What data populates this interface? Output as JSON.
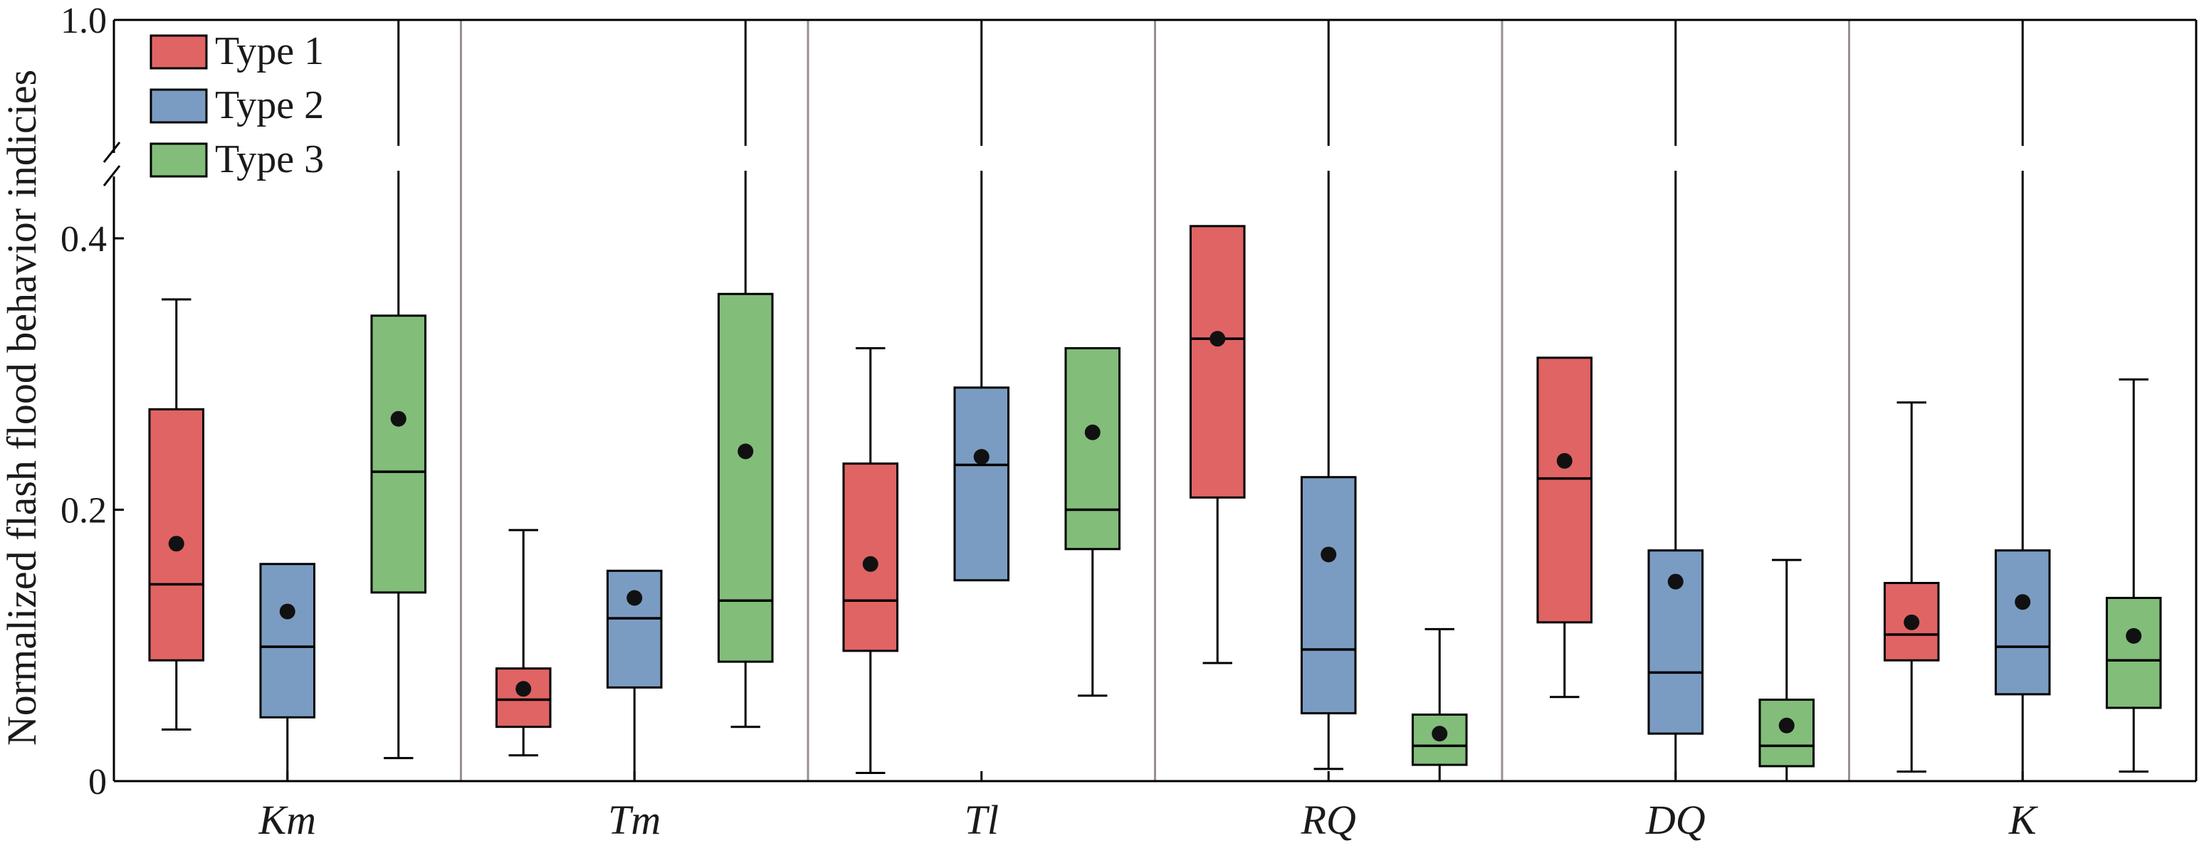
{
  "chart_data": {
    "type": "boxplot",
    "ylabel": "Normalized flash flood behavior indicies",
    "y_ticks": [
      "0",
      "0.2",
      "0.4",
      "1.0"
    ],
    "y_axis_break": {
      "lower_range": [
        0,
        0.45
      ],
      "upper_range": [
        0.9,
        1.0
      ]
    },
    "categories": [
      "Km",
      "Tm",
      "Tl",
      "RQ",
      "DQ",
      "K"
    ],
    "legend": {
      "position": "top-left"
    },
    "colors": {
      "Type 1": "#e06464",
      "Type 2": "#7b9cc2",
      "Type 3": "#82bd7a"
    },
    "series": [
      {
        "name": "Type 1",
        "boxes": [
          {
            "whisker_low": 0.038,
            "q1": 0.089,
            "median": 0.145,
            "q3": 0.274,
            "whisker_high": 0.355,
            "mean": 0.175
          },
          {
            "whisker_low": 0.019,
            "q1": 0.04,
            "median": 0.06,
            "q3": 0.083,
            "whisker_high": 0.185,
            "mean": 0.068
          },
          {
            "whisker_low": 0.006,
            "q1": 0.096,
            "median": 0.133,
            "q3": 0.234,
            "whisker_high": 0.319,
            "mean": 0.16
          },
          {
            "whisker_low": 0.087,
            "q1": 0.209,
            "median": 0.326,
            "q3": 0.409,
            "whisker_high": 0.409,
            "mean": 0.326
          },
          {
            "whisker_low": 0.062,
            "q1": 0.117,
            "median": 0.223,
            "q3": 0.312,
            "whisker_high": 0.312,
            "mean": 0.236
          },
          {
            "whisker_low": 0.007,
            "q1": 0.089,
            "median": 0.108,
            "q3": 0.146,
            "whisker_high": 0.279,
            "mean": 0.117
          }
        ]
      },
      {
        "name": "Type 2",
        "boxes": [
          {
            "whisker_low": 0.0,
            "q1": 0.047,
            "median": 0.099,
            "q3": 0.16,
            "whisker_high": 0.16,
            "mean": 0.125
          },
          {
            "whisker_low": 0.0,
            "q1": 0.069,
            "median": 0.12,
            "q3": 0.155,
            "whisker_high": 0.155,
            "mean": 0.135
          },
          {
            "whisker_low": 0.148,
            "q1": 0.148,
            "median": 0.233,
            "q3": 0.29,
            "whisker_high": 1.0,
            "mean": 0.239
          },
          {
            "whisker_low": 0.009,
            "q1": 0.05,
            "median": 0.097,
            "q3": 0.224,
            "whisker_high": 1.0,
            "mean": 0.167
          },
          {
            "whisker_low": 0.002,
            "q1": 0.035,
            "median": 0.08,
            "q3": 0.17,
            "whisker_high": 1.0,
            "mean": 0.147
          },
          {
            "whisker_low": 0.0,
            "q1": 0.064,
            "median": 0.099,
            "q3": 0.17,
            "whisker_high": 1.0,
            "mean": 0.132
          }
        ]
      },
      {
        "name": "Type 3",
        "boxes": [
          {
            "whisker_low": 0.017,
            "q1": 0.139,
            "median": 0.228,
            "q3": 0.343,
            "whisker_high": 1.0,
            "mean": 0.267
          },
          {
            "whisker_low": 0.04,
            "q1": 0.088,
            "median": 0.133,
            "q3": 0.359,
            "whisker_high": 1.0,
            "mean": 0.243
          },
          {
            "whisker_low": 0.063,
            "q1": 0.171,
            "median": 0.2,
            "q3": 0.319,
            "whisker_high": 0.319,
            "mean": 0.257
          },
          {
            "whisker_low": 0.0,
            "q1": 0.012,
            "median": 0.026,
            "q3": 0.049,
            "whisker_high": 0.112,
            "mean": 0.035
          },
          {
            "whisker_low": 0.0,
            "q1": 0.011,
            "median": 0.026,
            "q3": 0.06,
            "whisker_high": 0.163,
            "mean": 0.041
          },
          {
            "whisker_low": 0.007,
            "q1": 0.054,
            "median": 0.089,
            "q3": 0.135,
            "whisker_high": 0.296,
            "mean": 0.107
          }
        ]
      }
    ]
  }
}
